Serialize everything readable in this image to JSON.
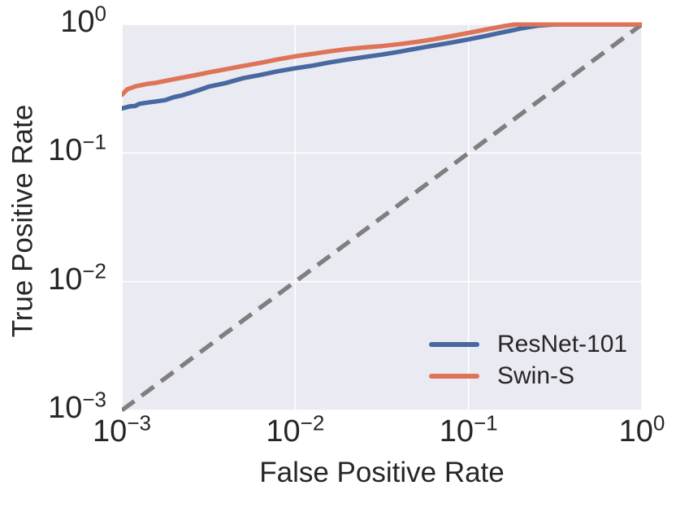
{
  "chart_data": {
    "type": "line",
    "title": "",
    "xlabel": "False Positive Rate",
    "ylabel": "True Positive Rate",
    "xscale": "log",
    "yscale": "log",
    "xlim": [
      0.001,
      1
    ],
    "ylim": [
      0.001,
      1
    ],
    "grid": "major-white-on-gray",
    "background_color": "#EAEAF2",
    "gridline_color": "#FFFFFF",
    "text_color": "#262626",
    "x_axis": {
      "ticks": [
        {
          "base": "10",
          "exp": "−3",
          "value": 0.001
        },
        {
          "base": "10",
          "exp": "−2",
          "value": 0.01
        },
        {
          "base": "10",
          "exp": "−1",
          "value": 0.1
        },
        {
          "base": "10",
          "exp": "0",
          "value": 1
        }
      ]
    },
    "y_axis": {
      "ticks": [
        {
          "base": "10",
          "exp": "0",
          "value": 1
        },
        {
          "base": "10",
          "exp": "−1",
          "value": 0.1
        },
        {
          "base": "10",
          "exp": "−2",
          "value": 0.01
        },
        {
          "base": "10",
          "exp": "−3",
          "value": 0.001
        }
      ]
    },
    "reference_line": {
      "name": "chance-diagonal",
      "style": "dashed",
      "color": "#7F7F7F",
      "from": [
        0.001,
        0.001
      ],
      "to": [
        1,
        1
      ]
    },
    "series": [
      {
        "name": "ResNet-101",
        "color": "#4868A0",
        "points": [
          [
            0.001,
            0.222
          ],
          [
            0.00112,
            0.231
          ],
          [
            0.00119,
            0.232
          ],
          [
            0.00126,
            0.241
          ],
          [
            0.00141,
            0.247
          ],
          [
            0.00158,
            0.252
          ],
          [
            0.00178,
            0.258
          ],
          [
            0.002,
            0.272
          ],
          [
            0.00224,
            0.281
          ],
          [
            0.00251,
            0.295
          ],
          [
            0.00282,
            0.31
          ],
          [
            0.00316,
            0.328
          ],
          [
            0.00398,
            0.35
          ],
          [
            0.00501,
            0.382
          ],
          [
            0.00631,
            0.405
          ],
          [
            0.00794,
            0.432
          ],
          [
            0.01,
            0.455
          ],
          [
            0.0126,
            0.478
          ],
          [
            0.0158,
            0.506
          ],
          [
            0.02,
            0.533
          ],
          [
            0.0251,
            0.557
          ],
          [
            0.0316,
            0.582
          ],
          [
            0.0398,
            0.613
          ],
          [
            0.0501,
            0.648
          ],
          [
            0.0631,
            0.684
          ],
          [
            0.0794,
            0.722
          ],
          [
            0.1,
            0.765
          ],
          [
            0.126,
            0.814
          ],
          [
            0.158,
            0.868
          ],
          [
            0.2,
            0.928
          ],
          [
            0.251,
            0.978
          ],
          [
            0.316,
            1.0
          ],
          [
            1.0,
            1.0
          ]
        ]
      },
      {
        "name": "Swin-S",
        "color": "#DE7357",
        "points": [
          [
            0.001,
            0.283
          ],
          [
            0.00107,
            0.312
          ],
          [
            0.0012,
            0.33
          ],
          [
            0.00141,
            0.345
          ],
          [
            0.00158,
            0.352
          ],
          [
            0.002,
            0.375
          ],
          [
            0.00251,
            0.397
          ],
          [
            0.00316,
            0.423
          ],
          [
            0.00398,
            0.448
          ],
          [
            0.00501,
            0.475
          ],
          [
            0.00631,
            0.503
          ],
          [
            0.00794,
            0.534
          ],
          [
            0.01,
            0.565
          ],
          [
            0.0126,
            0.59
          ],
          [
            0.0158,
            0.617
          ],
          [
            0.02,
            0.643
          ],
          [
            0.0251,
            0.662
          ],
          [
            0.0316,
            0.678
          ],
          [
            0.0398,
            0.702
          ],
          [
            0.0501,
            0.73
          ],
          [
            0.0631,
            0.766
          ],
          [
            0.0794,
            0.81
          ],
          [
            0.1,
            0.858
          ],
          [
            0.126,
            0.912
          ],
          [
            0.158,
            0.965
          ],
          [
            0.186,
            1.0
          ],
          [
            1.0,
            1.0
          ]
        ]
      }
    ],
    "legend": {
      "position": "lower-right",
      "frame": false,
      "items": [
        {
          "label": "ResNet-101",
          "color": "#4868A0"
        },
        {
          "label": "Swin-S",
          "color": "#DE7357"
        }
      ]
    }
  }
}
